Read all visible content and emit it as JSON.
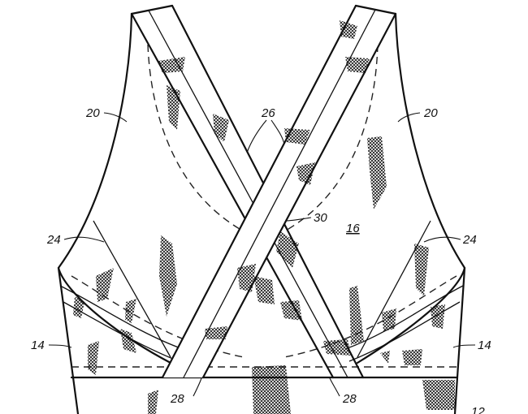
{
  "figure": {
    "labels": {
      "ref_20_left": "20",
      "ref_20_right": "20",
      "ref_26": "26",
      "ref_30": "30",
      "ref_16": "16",
      "ref_24_left": "24",
      "ref_24_right": "24",
      "ref_14_left": "14",
      "ref_14_right": "14",
      "ref_28_left": "28",
      "ref_28_right": "28",
      "ref_12": "12"
    }
  }
}
